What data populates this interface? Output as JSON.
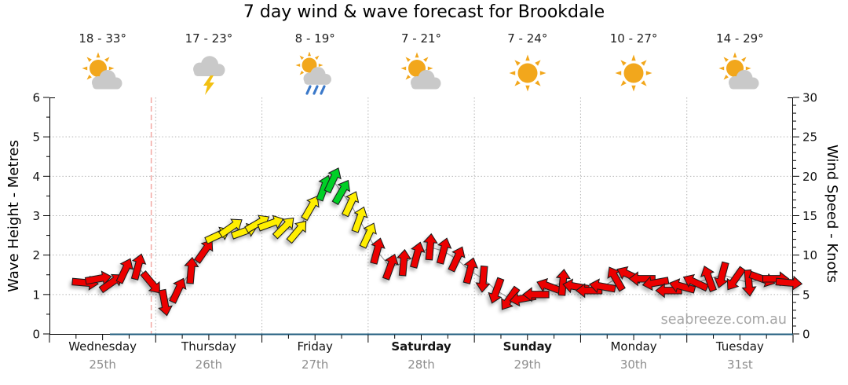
{
  "title": "7 day wind & wave forecast for Brookdale",
  "watermark": "seabreeze.com.au",
  "days": [
    {
      "name": "Wednesday",
      "date": "25th",
      "temp_range": "18 - 33°",
      "icon": "partly-cloudy",
      "weekend": false
    },
    {
      "name": "Thursday",
      "date": "26th",
      "temp_range": "17 - 23°",
      "icon": "thunderstorm",
      "weekend": false
    },
    {
      "name": "Friday",
      "date": "27th",
      "temp_range": "8 - 19°",
      "icon": "sun-showers",
      "weekend": false
    },
    {
      "name": "Saturday",
      "date": "28th",
      "temp_range": "7 - 21°",
      "icon": "partly-cloudy",
      "weekend": true
    },
    {
      "name": "Sunday",
      "date": "29th",
      "temp_range": "7 - 24°",
      "icon": "sunny",
      "weekend": true
    },
    {
      "name": "Monday",
      "date": "30th",
      "temp_range": "10 - 27°",
      "icon": "sunny",
      "weekend": false
    },
    {
      "name": "Tuesday",
      "date": "31st",
      "temp_range": "14 - 29°",
      "icon": "partly-cloudy",
      "weekend": false
    }
  ],
  "chart_data": {
    "type": "line",
    "subtype": "wind-arrow-forecast",
    "title": "7 day wind & wave forecast for Brookdale",
    "x_axis": {
      "unit": "hours from Wednesday 00:00",
      "range": [
        0,
        168
      ],
      "day_labels": [
        "Wednesday",
        "Thursday",
        "Friday",
        "Saturday",
        "Sunday",
        "Monday",
        "Tuesday"
      ]
    },
    "left_axis": {
      "label": "Wave Height - Metres",
      "range": [
        0,
        6
      ],
      "ticks": [
        0,
        1,
        2,
        3,
        4,
        5,
        6
      ]
    },
    "right_axis": {
      "label": "Wind Speed - Knots",
      "range": [
        0,
        30
      ],
      "ticks": [
        0,
        5,
        10,
        15,
        20,
        25,
        30
      ]
    },
    "grid": true,
    "now_marker_hour": 23,
    "wind_band_colors": {
      "light": "#ec0000",
      "moderate": "#ffee00",
      "fresh": "#00d026"
    },
    "points_format": [
      "hour",
      "wind_knots",
      "direction_deg_pointing_toward",
      "band"
    ],
    "points": [
      [
        8,
        6.5,
        95,
        "light"
      ],
      [
        11,
        7,
        80,
        "light"
      ],
      [
        14,
        6.5,
        55,
        "light"
      ],
      [
        17,
        8,
        25,
        "light"
      ],
      [
        20,
        8.5,
        15,
        "light"
      ],
      [
        23,
        6.5,
        140,
        "light"
      ],
      [
        26,
        4,
        170,
        "light"
      ],
      [
        29,
        5.5,
        25,
        "light"
      ],
      [
        32,
        8,
        5,
        "light"
      ],
      [
        35,
        10.5,
        35,
        "light"
      ],
      [
        38,
        12.5,
        65,
        "moderate"
      ],
      [
        41,
        13.5,
        55,
        "moderate"
      ],
      [
        44,
        13,
        70,
        "moderate"
      ],
      [
        47,
        14,
        60,
        "moderate"
      ],
      [
        50,
        14,
        70,
        "moderate"
      ],
      [
        53,
        13.5,
        45,
        "moderate"
      ],
      [
        56,
        13,
        40,
        "moderate"
      ],
      [
        59,
        16,
        30,
        "moderate"
      ],
      [
        62,
        18.5,
        20,
        "fresh"
      ],
      [
        64,
        19.5,
        25,
        "fresh"
      ],
      [
        66,
        18,
        30,
        "fresh"
      ],
      [
        68,
        16.5,
        25,
        "moderate"
      ],
      [
        70,
        14.5,
        20,
        "moderate"
      ],
      [
        72,
        12.5,
        25,
        "moderate"
      ],
      [
        74,
        10.5,
        15,
        "light"
      ],
      [
        77,
        8.5,
        20,
        "light"
      ],
      [
        80,
        9,
        5,
        "light"
      ],
      [
        83,
        10,
        15,
        "light"
      ],
      [
        86,
        11,
        5,
        "light"
      ],
      [
        89,
        10.5,
        15,
        "light"
      ],
      [
        92,
        9.5,
        25,
        "light"
      ],
      [
        95,
        8,
        15,
        "light"
      ],
      [
        98,
        7,
        185,
        "light"
      ],
      [
        101,
        5.5,
        200,
        "light"
      ],
      [
        104,
        4.5,
        215,
        "light"
      ],
      [
        107,
        4.5,
        260,
        "light"
      ],
      [
        110,
        5,
        270,
        "light"
      ],
      [
        113,
        6,
        290,
        "light"
      ],
      [
        116,
        6.5,
        5,
        "light"
      ],
      [
        119,
        6,
        280,
        "light"
      ],
      [
        122,
        5.5,
        270,
        "light"
      ],
      [
        125,
        6,
        280,
        "light"
      ],
      [
        128,
        7,
        330,
        "light"
      ],
      [
        131,
        7.5,
        295,
        "light"
      ],
      [
        134,
        7,
        270,
        "light"
      ],
      [
        137,
        6.5,
        260,
        "light"
      ],
      [
        140,
        5.5,
        270,
        "light"
      ],
      [
        143,
        6,
        285,
        "light"
      ],
      [
        146,
        6.5,
        295,
        "light"
      ],
      [
        149,
        7,
        340,
        "light"
      ],
      [
        152,
        7.5,
        195,
        "light"
      ],
      [
        155,
        7,
        215,
        "light"
      ],
      [
        158,
        6.5,
        175,
        "light"
      ],
      [
        161,
        7,
        110,
        "light"
      ],
      [
        164,
        7,
        90,
        "light"
      ],
      [
        167,
        6.5,
        95,
        "light"
      ]
    ]
  }
}
